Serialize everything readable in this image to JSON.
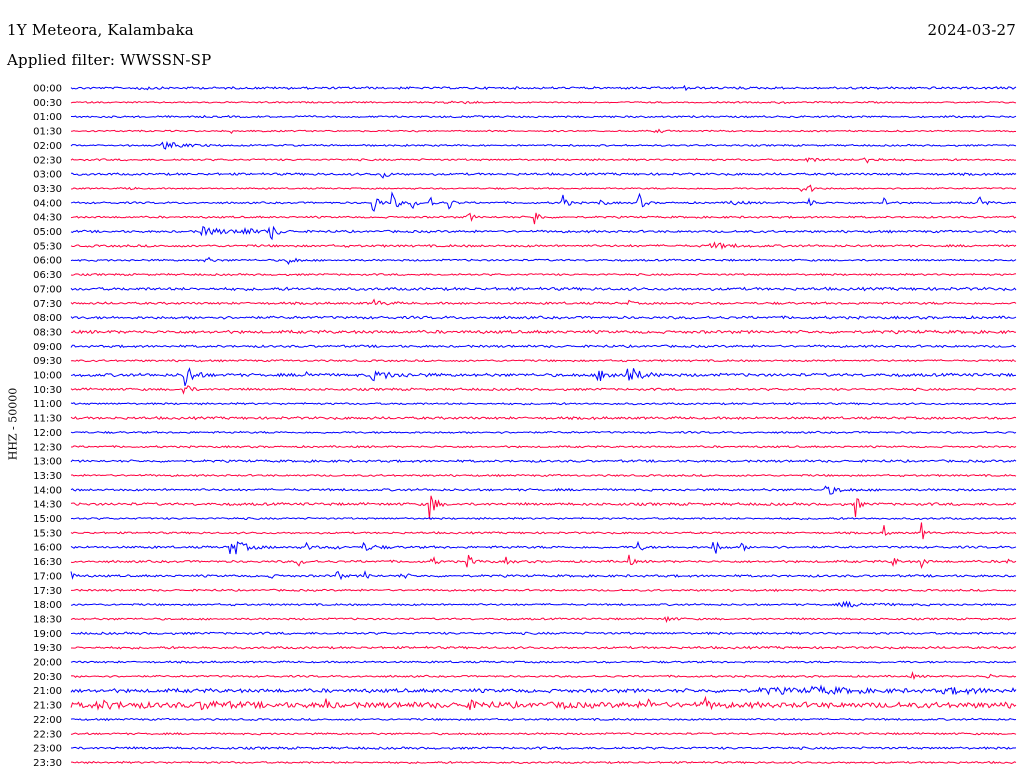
{
  "header": {
    "station": "1Y Meteora, Kalambaka",
    "date": "2024-03-27",
    "filter": "Applied filter: WWSSN-SP"
  },
  "colors": {
    "blue": "#0000ff",
    "red": "#ff0040"
  },
  "chart_data": {
    "type": "line",
    "ylabel": "HHZ - 50000",
    "row_labels": [
      "00:00",
      "00:30",
      "01:00",
      "01:30",
      "02:00",
      "02:30",
      "03:00",
      "03:30",
      "04:00",
      "04:30",
      "05:00",
      "05:30",
      "06:00",
      "06:30",
      "07:00",
      "07:30",
      "08:00",
      "08:30",
      "09:00",
      "09:30",
      "10:00",
      "10:30",
      "11:00",
      "11:30",
      "12:00",
      "12:30",
      "13:00",
      "13:30",
      "14:00",
      "14:30",
      "15:00",
      "15:30",
      "16:00",
      "16:30",
      "17:00",
      "17:30",
      "18:00",
      "18:30",
      "19:00",
      "19:30",
      "20:00",
      "20:30",
      "21:00",
      "21:30",
      "22:00",
      "22:30",
      "23:00",
      "23:30"
    ],
    "series_colors": [
      "blue",
      "red"
    ],
    "row_noise": [
      1.2,
      0.8,
      1.0,
      0.8,
      0.9,
      1.0,
      1.2,
      0.8,
      1.0,
      1.0,
      1.2,
      1.2,
      1.0,
      1.0,
      1.5,
      1.2,
      1.4,
      1.6,
      1.2,
      1.0,
      1.6,
      1.2,
      1.0,
      1.3,
      1.0,
      1.0,
      1.2,
      1.0,
      1.2,
      1.4,
      1.0,
      1.0,
      1.2,
      1.2,
      1.2,
      1.0,
      1.0,
      1.0,
      1.2,
      1.2,
      1.0,
      1.0,
      2.0,
      3.0,
      1.0,
      1.0,
      1.2,
      1.0
    ],
    "events": [
      {
        "row": 0,
        "t": 0.07,
        "a": 2,
        "d": 0.01
      },
      {
        "row": 0,
        "t": 0.65,
        "a": 2,
        "d": 0.005
      },
      {
        "row": 1,
        "t": 0.4,
        "a": 1.5,
        "d": 0.02
      },
      {
        "row": 1,
        "t": 0.75,
        "a": 1.5,
        "d": 0.005
      },
      {
        "row": 3,
        "t": 0.17,
        "a": 2,
        "d": 0.005
      },
      {
        "row": 3,
        "t": 0.62,
        "a": 1.5,
        "d": 0.01
      },
      {
        "row": 4,
        "t": 0.1,
        "a": 3,
        "d": 0.02
      },
      {
        "row": 5,
        "t": 0.78,
        "a": 2,
        "d": 0.01
      },
      {
        "row": 5,
        "t": 0.84,
        "a": 4,
        "d": 0.01
      },
      {
        "row": 6,
        "t": 0.33,
        "a": 4,
        "d": 0.005
      },
      {
        "row": 7,
        "t": 0.06,
        "a": 2,
        "d": 0.005
      },
      {
        "row": 7,
        "t": 0.77,
        "a": 3,
        "d": 0.01
      },
      {
        "row": 7,
        "t": 0.78,
        "a": 15,
        "d": 0.002
      },
      {
        "row": 8,
        "t": 0.32,
        "a": 12,
        "d": 0.005
      },
      {
        "row": 8,
        "t": 0.34,
        "a": 10,
        "d": 0.005
      },
      {
        "row": 8,
        "t": 0.36,
        "a": 8,
        "d": 0.004
      },
      {
        "row": 8,
        "t": 0.38,
        "a": 6,
        "d": 0.004
      },
      {
        "row": 8,
        "t": 0.4,
        "a": 6,
        "d": 0.004
      },
      {
        "row": 8,
        "t": 0.52,
        "a": 10,
        "d": 0.004
      },
      {
        "row": 8,
        "t": 0.56,
        "a": 3,
        "d": 0.005
      },
      {
        "row": 8,
        "t": 0.6,
        "a": 12,
        "d": 0.004
      },
      {
        "row": 8,
        "t": 0.7,
        "a": 3,
        "d": 0.008
      },
      {
        "row": 8,
        "t": 0.78,
        "a": 8,
        "d": 0.004
      },
      {
        "row": 8,
        "t": 0.86,
        "a": 8,
        "d": 0.003
      },
      {
        "row": 8,
        "t": 0.96,
        "a": 10,
        "d": 0.004
      },
      {
        "row": 9,
        "t": 0.42,
        "a": 6,
        "d": 0.004
      },
      {
        "row": 9,
        "t": 0.49,
        "a": 18,
        "d": 0.003
      },
      {
        "row": 10,
        "t": 0.14,
        "a": 4,
        "d": 0.02
      },
      {
        "row": 10,
        "t": 0.18,
        "a": 4,
        "d": 0.01
      },
      {
        "row": 10,
        "t": 0.21,
        "a": 10,
        "d": 0.006
      },
      {
        "row": 11,
        "t": 0.68,
        "a": 3,
        "d": 0.015
      },
      {
        "row": 12,
        "t": 0.14,
        "a": 6,
        "d": 0.005
      },
      {
        "row": 12,
        "t": 0.23,
        "a": 6,
        "d": 0.005
      },
      {
        "row": 15,
        "t": 0.32,
        "a": 3,
        "d": 0.01
      },
      {
        "row": 15,
        "t": 0.59,
        "a": 3,
        "d": 0.003
      },
      {
        "row": 20,
        "t": 0.12,
        "a": 14,
        "d": 0.008
      },
      {
        "row": 20,
        "t": 0.25,
        "a": 4,
        "d": 0.005
      },
      {
        "row": 20,
        "t": 0.32,
        "a": 4,
        "d": 0.02
      },
      {
        "row": 20,
        "t": 0.56,
        "a": 5,
        "d": 0.015
      },
      {
        "row": 20,
        "t": 0.59,
        "a": 9,
        "d": 0.01
      },
      {
        "row": 21,
        "t": 0.12,
        "a": 10,
        "d": 0.004
      },
      {
        "row": 28,
        "t": 0.8,
        "a": 5,
        "d": 0.01
      },
      {
        "row": 29,
        "t": 0.38,
        "a": 22,
        "d": 0.004
      },
      {
        "row": 29,
        "t": 0.83,
        "a": 14,
        "d": 0.003
      },
      {
        "row": 31,
        "t": 0.86,
        "a": 8,
        "d": 0.003
      },
      {
        "row": 31,
        "t": 0.9,
        "a": 10,
        "d": 0.003
      },
      {
        "row": 32,
        "t": 0.17,
        "a": 9,
        "d": 0.012
      },
      {
        "row": 32,
        "t": 0.25,
        "a": 6,
        "d": 0.004
      },
      {
        "row": 32,
        "t": 0.28,
        "a": 5,
        "d": 0.003
      },
      {
        "row": 32,
        "t": 0.31,
        "a": 4,
        "d": 0.01
      },
      {
        "row": 32,
        "t": 0.6,
        "a": 6,
        "d": 0.004
      },
      {
        "row": 32,
        "t": 0.68,
        "a": 12,
        "d": 0.004
      },
      {
        "row": 32,
        "t": 0.71,
        "a": 5,
        "d": 0.003
      },
      {
        "row": 33,
        "t": 0.24,
        "a": 5,
        "d": 0.004
      },
      {
        "row": 33,
        "t": 0.38,
        "a": 8,
        "d": 0.004
      },
      {
        "row": 33,
        "t": 0.42,
        "a": 6,
        "d": 0.006
      },
      {
        "row": 33,
        "t": 0.46,
        "a": 4,
        "d": 0.004
      },
      {
        "row": 33,
        "t": 0.59,
        "a": 8,
        "d": 0.003
      },
      {
        "row": 33,
        "t": 0.87,
        "a": 7,
        "d": 0.003
      },
      {
        "row": 33,
        "t": 0.9,
        "a": 7,
        "d": 0.003
      },
      {
        "row": 33,
        "t": 0.99,
        "a": 5,
        "d": 0.003
      },
      {
        "row": 34,
        "t": 0.0,
        "a": 4,
        "d": 0.003
      },
      {
        "row": 34,
        "t": 0.21,
        "a": 2,
        "d": 0.005
      },
      {
        "row": 34,
        "t": 0.28,
        "a": 8,
        "d": 0.004
      },
      {
        "row": 34,
        "t": 0.31,
        "a": 5,
        "d": 0.004
      },
      {
        "row": 34,
        "t": 0.35,
        "a": 5,
        "d": 0.004
      },
      {
        "row": 36,
        "t": 0.82,
        "a": 2,
        "d": 0.03
      },
      {
        "row": 37,
        "t": 0.63,
        "a": 3,
        "d": 0.006
      },
      {
        "row": 41,
        "t": 0.89,
        "a": 3,
        "d": 0.004
      },
      {
        "row": 41,
        "t": 0.97,
        "a": 4,
        "d": 0.003
      },
      {
        "row": 42,
        "t": 0.74,
        "a": 2,
        "d": 0.04
      },
      {
        "row": 42,
        "t": 0.79,
        "a": 2.5,
        "d": 0.03
      },
      {
        "row": 42,
        "t": 0.93,
        "a": 2,
        "d": 0.04
      },
      {
        "row": 43,
        "t": 0.03,
        "a": 3,
        "d": 0.02
      },
      {
        "row": 43,
        "t": 0.14,
        "a": 3,
        "d": 0.02
      },
      {
        "row": 43,
        "t": 0.27,
        "a": 7,
        "d": 0.004
      },
      {
        "row": 43,
        "t": 0.42,
        "a": 3,
        "d": 0.01
      },
      {
        "row": 43,
        "t": 0.52,
        "a": 12,
        "d": 0.003
      },
      {
        "row": 43,
        "t": 0.61,
        "a": 5,
        "d": 0.005
      },
      {
        "row": 43,
        "t": 0.67,
        "a": 6,
        "d": 0.005
      }
    ]
  }
}
